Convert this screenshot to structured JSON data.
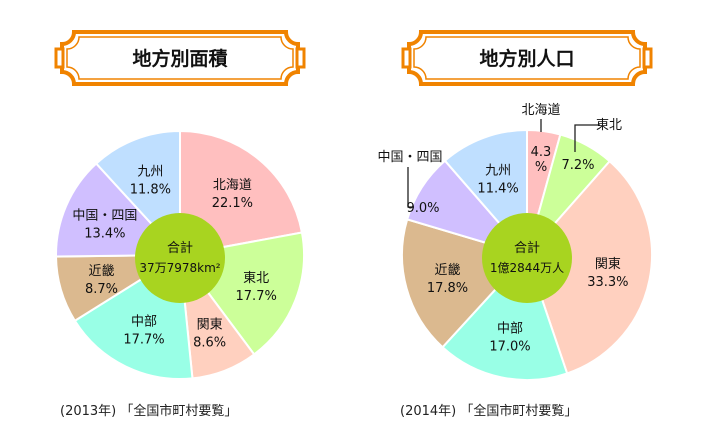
{
  "chart_data": [
    {
      "type": "pie",
      "title": "地方別面積",
      "center_label": "合計",
      "center_value": "37万7978km²",
      "categories": [
        "北海道",
        "東北",
        "関東",
        "中部",
        "近畿",
        "中国・四国",
        "九州"
      ],
      "values": [
        22.1,
        17.7,
        8.6,
        17.7,
        8.7,
        13.4,
        11.8
      ],
      "value_labels": [
        "22.1%",
        "17.7%",
        "8.6%",
        "17.7%",
        "8.7%",
        "13.4%",
        "11.8%"
      ],
      "colors": [
        "#ffbfbf",
        "#ccff99",
        "#ffd0bf",
        "#99ffe6",
        "#dbb98f",
        "#d0bfff",
        "#bfdfff"
      ],
      "source": "(2013年) 「全国市町村要覧」"
    },
    {
      "type": "pie",
      "title": "地方別人口",
      "center_label": "合計",
      "center_value": "1億2844万人",
      "categories": [
        "北海道",
        "東北",
        "関東",
        "中部",
        "近畿",
        "中国・四国",
        "九州"
      ],
      "values": [
        4.3,
        7.2,
        33.3,
        17.0,
        17.8,
        9.0,
        11.4
      ],
      "value_labels": [
        "4.3%",
        "7.2%",
        "33.3%",
        "17.0%",
        "17.8%",
        "9.0%",
        "11.4%"
      ],
      "colors": [
        "#ffbfbf",
        "#ccff99",
        "#ffd0bf",
        "#99ffe6",
        "#dbb98f",
        "#d0bfff",
        "#bfdfff"
      ],
      "source": "(2014年) 「全国市町村要覧」"
    }
  ],
  "colors": {
    "frame": "#f08300",
    "center": "#a8d420"
  }
}
